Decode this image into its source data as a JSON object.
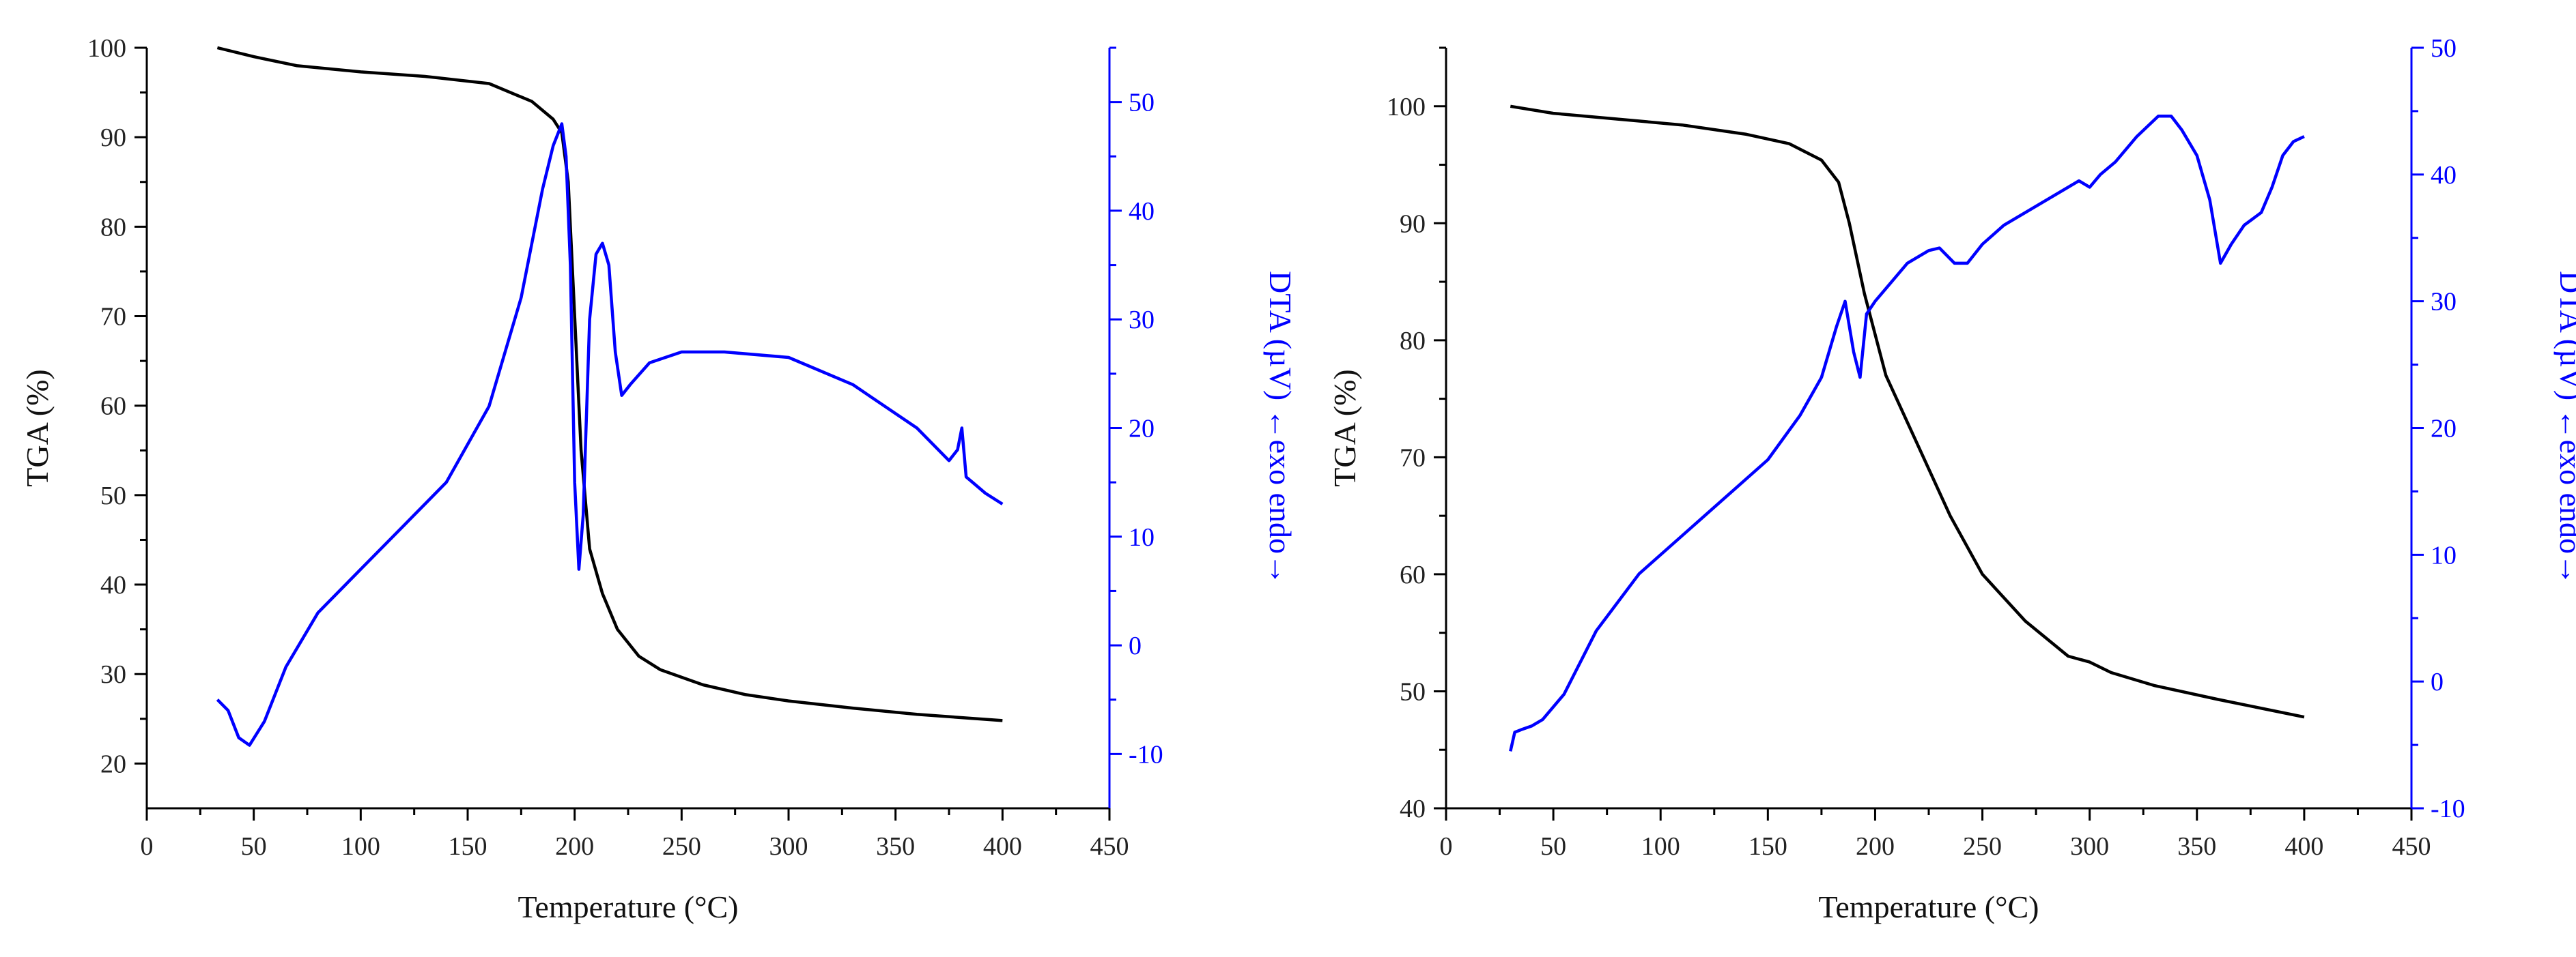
{
  "chart_data": [
    {
      "type": "line",
      "xlabel": "Temperature (°C)",
      "ylabel_left": "TGA (%)",
      "ylabel_right": "DTA (µV)  ←exo endo→",
      "xlim": [
        0,
        450
      ],
      "xticks": [
        0,
        50,
        100,
        150,
        200,
        250,
        300,
        350,
        400,
        450
      ],
      "ylim_left": [
        15,
        100
      ],
      "yticks_left": [
        20,
        30,
        40,
        50,
        60,
        70,
        80,
        90,
        100
      ],
      "ylim_right": [
        -15,
        55
      ],
      "yticks_right": [
        -10,
        0,
        10,
        20,
        30,
        40,
        50
      ],
      "series": [
        {
          "name": "TGA",
          "axis": "left",
          "color": "#000000",
          "x": [
            33,
            50,
            70,
            100,
            130,
            160,
            180,
            190,
            194,
            197,
            200,
            203,
            207,
            213,
            220,
            230,
            240,
            260,
            280,
            300,
            330,
            360,
            400
          ],
          "y": [
            100,
            99,
            98,
            97.3,
            96.8,
            96,
            94,
            92,
            90.5,
            85,
            70,
            55,
            44,
            39,
            35,
            32,
            30.5,
            28.8,
            27.7,
            27,
            26.2,
            25.5,
            24.8
          ]
        },
        {
          "name": "DTA",
          "axis": "right",
          "color": "#0000ff",
          "x": [
            33,
            38,
            43,
            48,
            55,
            65,
            80,
            100,
            120,
            140,
            160,
            175,
            185,
            190,
            194,
            196,
            198,
            200,
            202,
            204,
            207,
            210,
            213,
            216,
            219,
            222,
            226,
            235,
            250,
            270,
            300,
            330,
            360,
            375,
            379,
            381,
            383,
            386,
            392,
            400
          ],
          "y": [
            -5,
            -6,
            -8.5,
            -9.2,
            -7,
            -2,
            3,
            7,
            11,
            15,
            22,
            32,
            42,
            46,
            48,
            45,
            35,
            15,
            7,
            12,
            30,
            36,
            37,
            35,
            27,
            23,
            24,
            26,
            27,
            27,
            26.5,
            24,
            20,
            17,
            18,
            20,
            15.5,
            15,
            14,
            13
          ]
        }
      ]
    },
    {
      "type": "line",
      "xlabel": "Temperature (°C)",
      "ylabel_left": "TGA (%)",
      "ylabel_right": "DTA (µV)  ←exo endo→",
      "xlim": [
        0,
        450
      ],
      "xticks": [
        0,
        50,
        100,
        150,
        200,
        250,
        300,
        350,
        400,
        450
      ],
      "ylim_left": [
        40,
        105
      ],
      "yticks_left": [
        40,
        50,
        60,
        70,
        80,
        90,
        100
      ],
      "ylim_right": [
        -10,
        50
      ],
      "yticks_right": [
        -10,
        0,
        10,
        20,
        30,
        40,
        50
      ],
      "series": [
        {
          "name": "TGA",
          "axis": "left",
          "color": "#000000",
          "x": [
            30,
            50,
            80,
            110,
            140,
            160,
            175,
            183,
            188,
            195,
            205,
            220,
            235,
            250,
            270,
            290,
            300,
            310,
            330,
            360,
            400
          ],
          "y": [
            100,
            99.4,
            98.9,
            98.4,
            97.6,
            96.8,
            95.4,
            93.5,
            90,
            84,
            77,
            71,
            65,
            60,
            56,
            53,
            52.5,
            51.6,
            50.5,
            49.3,
            47.8
          ]
        },
        {
          "name": "DTA",
          "axis": "right",
          "color": "#0000ff",
          "x": [
            30,
            32,
            35,
            40,
            45,
            55,
            70,
            90,
            110,
            130,
            150,
            165,
            175,
            182,
            186,
            190,
            193,
            196,
            200,
            205,
            215,
            225,
            230,
            237,
            243,
            250,
            260,
            275,
            290,
            295,
            300,
            305,
            312,
            322,
            332,
            338,
            343,
            350,
            356,
            361,
            366,
            372,
            380,
            385,
            390,
            395,
            400
          ],
          "y": [
            -5.5,
            -4,
            -3.8,
            -3.5,
            -3,
            -1,
            4,
            8.5,
            11.5,
            14.5,
            17.5,
            21,
            24,
            28,
            30,
            26,
            24,
            29,
            30,
            31,
            33,
            34,
            34.2,
            33,
            33,
            34.5,
            36,
            37.5,
            39,
            39.5,
            39,
            40,
            41,
            43,
            44.6,
            44.6,
            43.5,
            41.5,
            38,
            33,
            34.5,
            36,
            37,
            39,
            41.5,
            42.6,
            43
          ]
        }
      ]
    }
  ]
}
